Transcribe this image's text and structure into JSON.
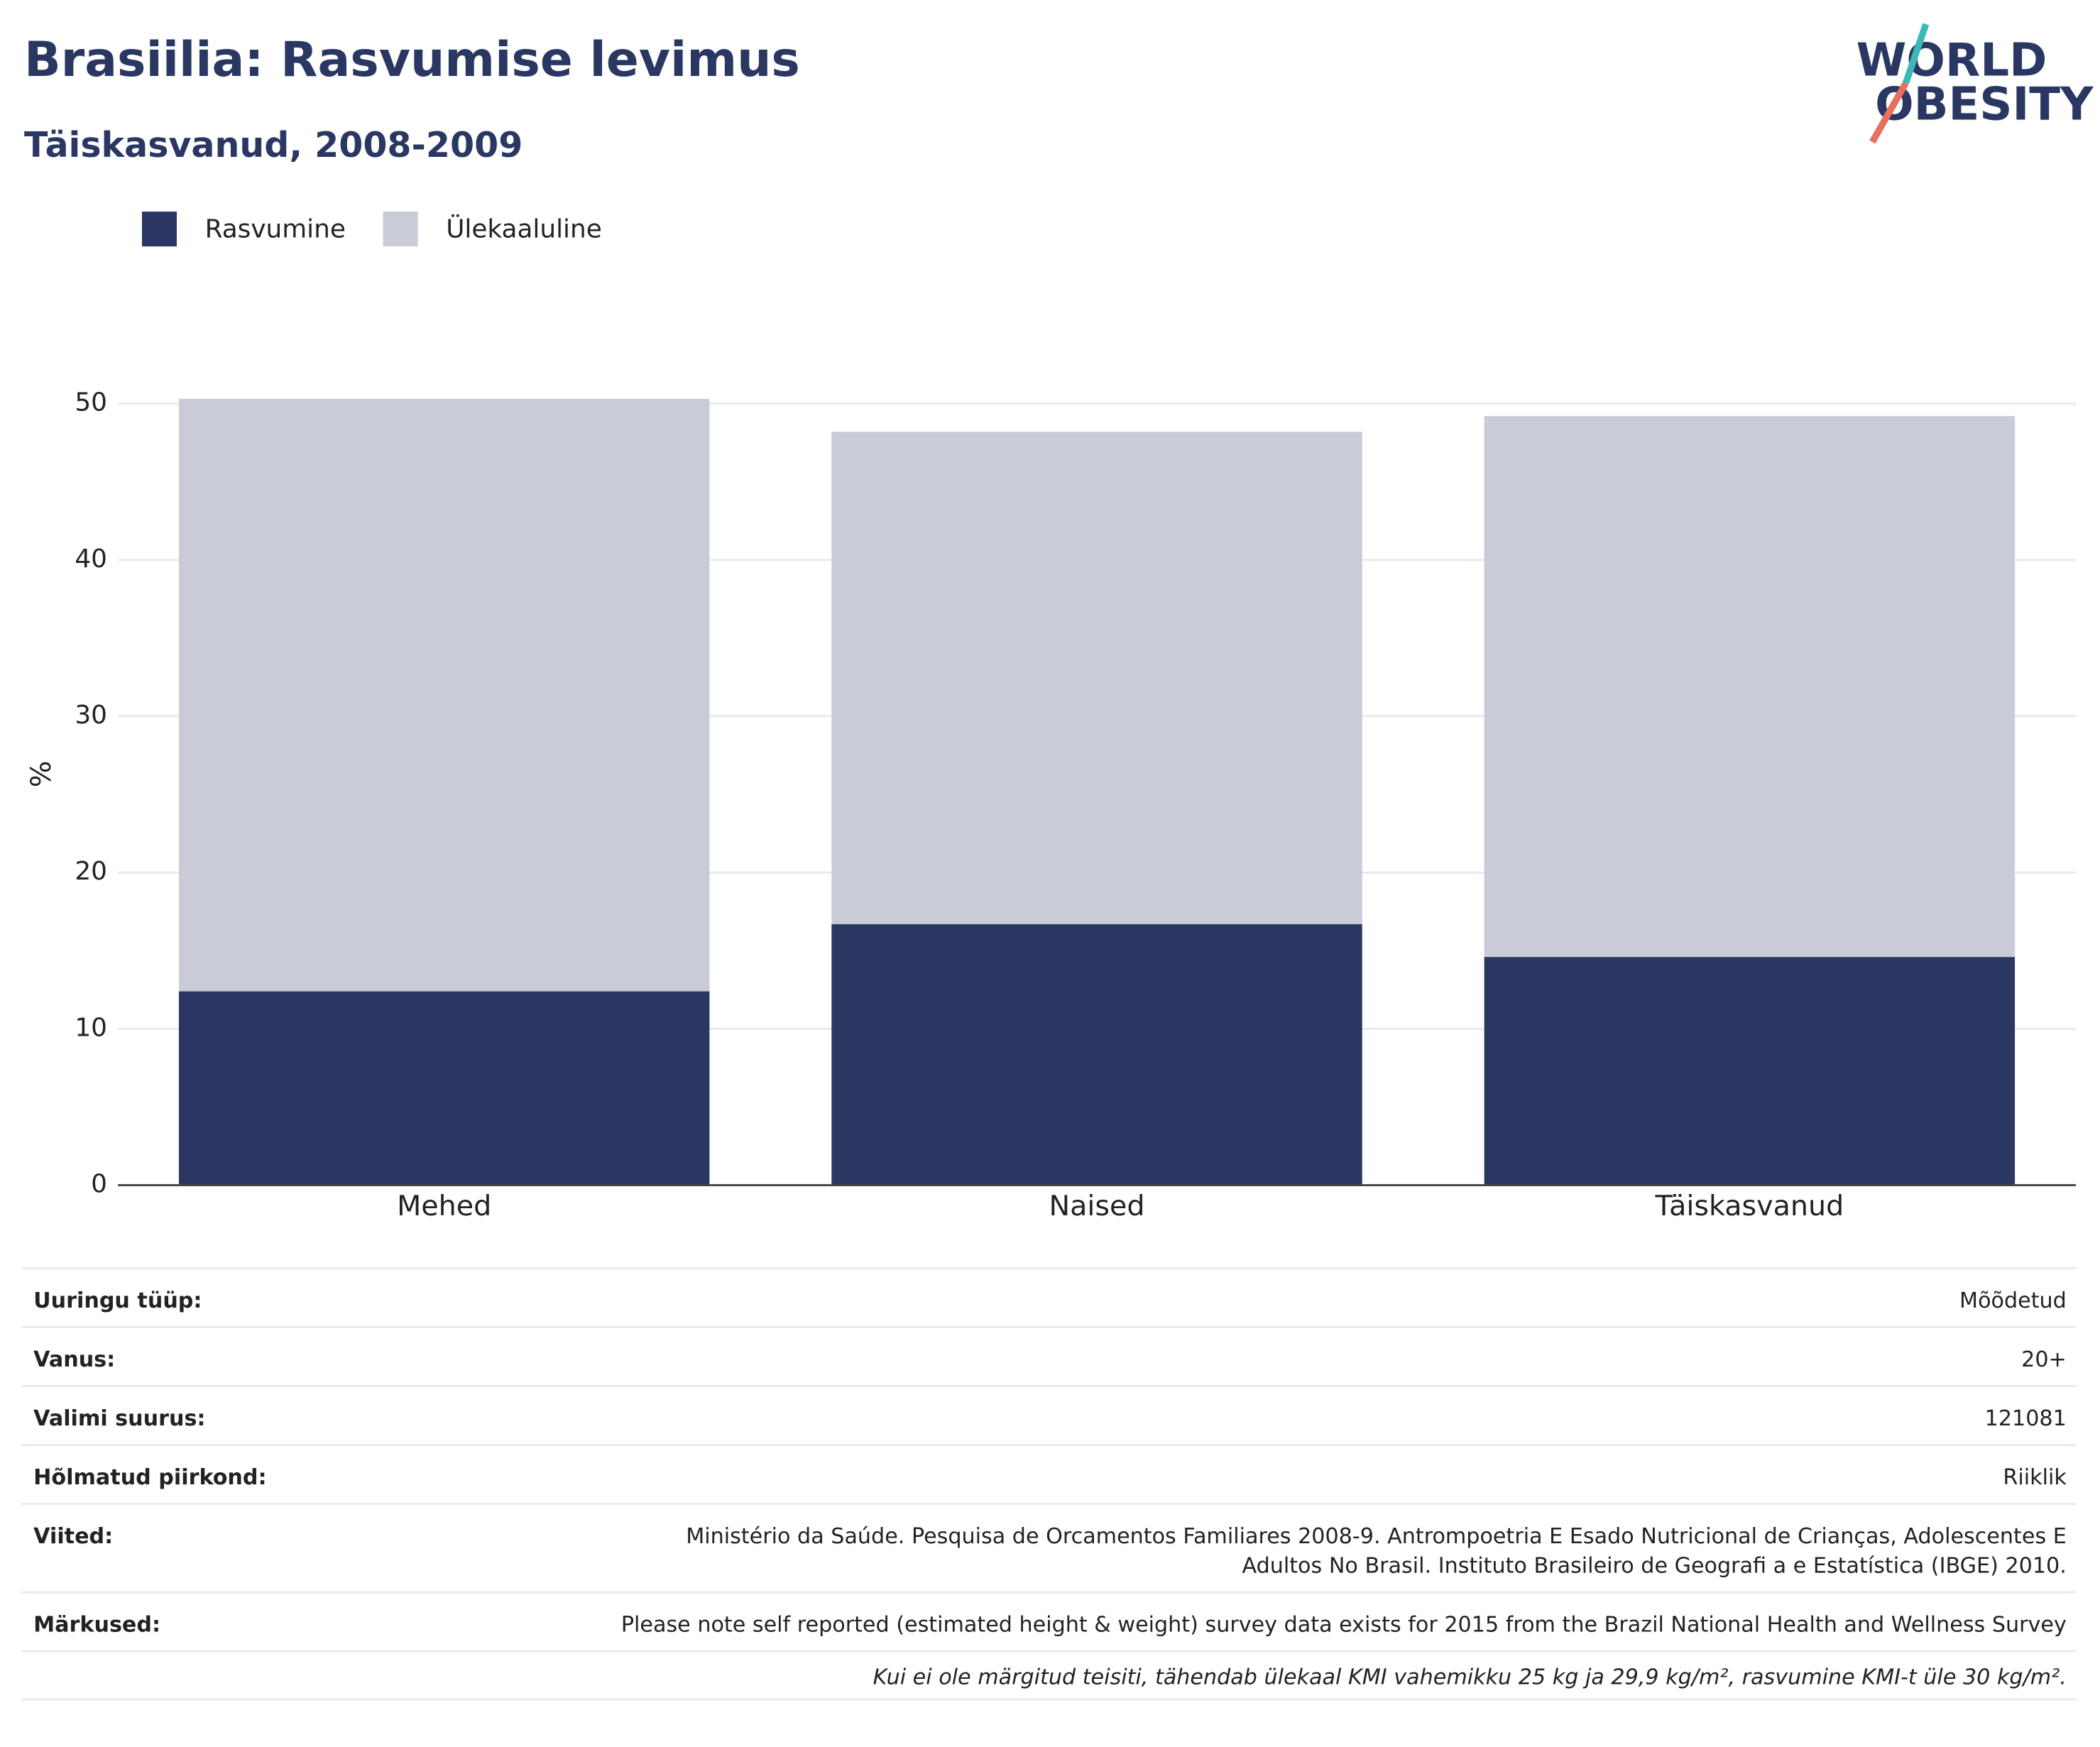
{
  "chart_data": {
    "type": "bar",
    "stacked": true,
    "title": "Brasiilia: Rasvumise levimus",
    "subtitle": "Täiskasvanud, 2008-2009",
    "y_label": "%",
    "categories": [
      "Mehed",
      "Naised",
      "Täiskasvanud"
    ],
    "series": [
      {
        "name": "Rasvumine",
        "color": "#2a3763",
        "values": [
          12.4,
          16.7,
          14.6
        ]
      },
      {
        "name": "Ülekaaluline",
        "color": "#c9cbd6",
        "values": [
          37.9,
          31.5,
          34.6
        ]
      }
    ],
    "ylim": [
      0,
      55
    ],
    "yticks": [
      0,
      10,
      20,
      30,
      40,
      50
    ],
    "grid": true,
    "legend": "top-left"
  },
  "logo": {
    "line1": "WORLD",
    "line2": "OBESITY"
  },
  "table": {
    "rows": [
      {
        "label": "Uuringu tüüp:",
        "value": "Mõõdetud"
      },
      {
        "label": "Vanus:",
        "value": "20+"
      },
      {
        "label": "Valimi suurus:",
        "value": "121081"
      },
      {
        "label": "Hõlmatud piirkond:",
        "value": "Riiklik"
      },
      {
        "label": "Viited:",
        "value": [
          "Ministério da Saúde. Pesquisa de Orcamentos Familiares 2008-9. Antrompoetria E Esado Nutricional de Crianças, Adolescentes E",
          "Adultos No Brasil. Instituto Brasileiro de Geografi a e Estatística (IBGE) 2010."
        ]
      },
      {
        "label": "Märkused:",
        "value": "Please note self reported (estimated height & weight) survey data exists for 2015 from the Brazil National Health and Wellness Survey"
      }
    ],
    "footnote": "Kui ei ole märgitud teisiti, tähendab ülekaal KMI vahemikku 25 kg ja 29,9 kg/m², rasvumine KMI-t üle 30 kg/m²."
  }
}
